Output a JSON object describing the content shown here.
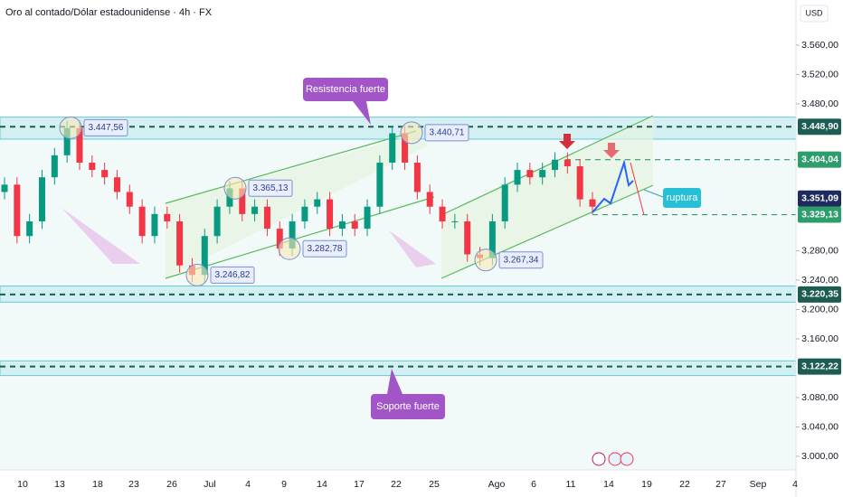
{
  "header": {
    "title": "Oro al contado/Dólar estadounidense · 4h · FX",
    "currency": "USD"
  },
  "chart_data": {
    "type": "candlestick",
    "ylim": [
      2981.5,
      3621.5
    ],
    "yticks": [
      {
        "value": 3560,
        "label": "3.560,00"
      },
      {
        "value": 3520,
        "label": "3.520,00"
      },
      {
        "value": 3480,
        "label": "3.480,00"
      },
      {
        "value": 3280,
        "label": "3.280,00"
      },
      {
        "value": 3240,
        "label": "3.240,00"
      },
      {
        "value": 3200,
        "label": "3.200,00"
      },
      {
        "value": 3160,
        "label": "3.160,00"
      },
      {
        "value": 3080,
        "label": "3.080,00"
      },
      {
        "value": 3040,
        "label": "3.040,00"
      },
      {
        "value": 3000,
        "label": "3.000,00"
      }
    ],
    "x_labels": [
      "10",
      "13",
      "18",
      "23",
      "26",
      "Jul",
      "4",
      "9",
      "14",
      "17",
      "22",
      "25",
      "Ago",
      "6",
      "11",
      "14",
      "19",
      "22",
      "27",
      "Sep",
      "4"
    ],
    "open": [
      3360,
      3370,
      3300,
      3320,
      3380,
      3410,
      3447,
      3400,
      3390,
      3380,
      3360,
      3340,
      3300,
      3330,
      3320,
      3260,
      3247,
      3300,
      3340,
      3365,
      3330,
      3340,
      3310,
      3283,
      3320,
      3340,
      3350,
      3310,
      3320,
      3310,
      3340,
      3400,
      3440,
      3400,
      3360,
      3340,
      3320,
      3320,
      3275,
      3270,
      3320,
      3370,
      3390,
      3380,
      3390,
      3404,
      3395,
      3350
    ],
    "high": [
      3380,
      3380,
      3330,
      3390,
      3420,
      3457,
      3457,
      3410,
      3400,
      3390,
      3370,
      3350,
      3340,
      3340,
      3330,
      3270,
      3310,
      3350,
      3375,
      3375,
      3350,
      3350,
      3320,
      3330,
      3350,
      3360,
      3360,
      3330,
      3330,
      3350,
      3410,
      3450,
      3450,
      3410,
      3370,
      3350,
      3330,
      3330,
      3285,
      3330,
      3380,
      3400,
      3400,
      3400,
      3414,
      3414,
      3405,
      3360
    ],
    "low": [
      3350,
      3290,
      3290,
      3310,
      3370,
      3400,
      3390,
      3380,
      3370,
      3350,
      3330,
      3290,
      3290,
      3310,
      3250,
      3237,
      3237,
      3290,
      3330,
      3320,
      3320,
      3300,
      3273,
      3273,
      3310,
      3330,
      3300,
      3300,
      3300,
      3300,
      3330,
      3390,
      3390,
      3350,
      3330,
      3310,
      3310,
      3265,
      3260,
      3260,
      3310,
      3360,
      3370,
      3370,
      3380,
      3385,
      3340,
      3330
    ],
    "close": [
      3370,
      3300,
      3320,
      3380,
      3410,
      3447,
      3400,
      3390,
      3380,
      3360,
      3340,
      3300,
      3330,
      3320,
      3260,
      3247,
      3300,
      3340,
      3365,
      3330,
      3340,
      3310,
      3283,
      3320,
      3340,
      3350,
      3310,
      3320,
      3310,
      3340,
      3400,
      3440,
      3400,
      3360,
      3340,
      3320,
      3320,
      3275,
      3270,
      3320,
      3370,
      3390,
      3380,
      3390,
      3404,
      3395,
      3350,
      3340
    ],
    "up_color": "#089981",
    "down_color": "#f23645",
    "zones": [
      [
        3432,
        3462
      ],
      [
        3210,
        3232
      ],
      [
        3110,
        3130
      ]
    ],
    "levels": [
      {
        "value": 3448.9,
        "label": "3.448,90",
        "color": "#1d5c52"
      },
      {
        "value": 3404.04,
        "label": "3.404,04",
        "color": "#2e9d6c"
      },
      {
        "value": 3351.09,
        "label": "3.351,09",
        "color": "#1f2b5e"
      },
      {
        "value": 3329.13,
        "label": "3.329,13",
        "color": "#2e9d6c"
      },
      {
        "value": 3220.35,
        "label": "3.220,35",
        "color": "#1d5c52"
      },
      {
        "value": 3122.22,
        "label": "3.122,22",
        "color": "#1d5c52"
      }
    ],
    "points": [
      {
        "value": 3447.56,
        "label": "3.447,56"
      },
      {
        "value": 3246.82,
        "label": "3.246,82"
      },
      {
        "value": 3365.13,
        "label": "3.365,13"
      },
      {
        "value": 3282.78,
        "label": "3.282,78"
      },
      {
        "value": 3440.71,
        "label": "3.440,71"
      },
      {
        "value": 3267.34,
        "label": "3.267,34"
      }
    ],
    "annotations": [
      "Resistencia fuerte",
      "Soporte fuerte",
      "ruptura"
    ]
  }
}
